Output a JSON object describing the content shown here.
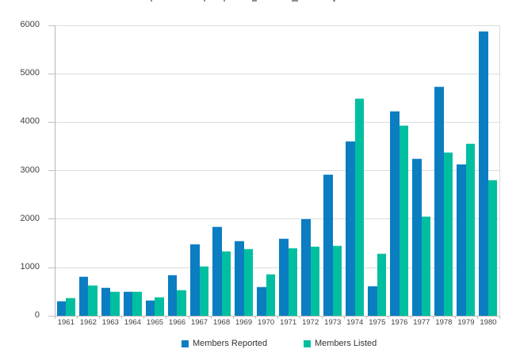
{
  "chart_data": {
    "type": "bar",
    "title_clipped": true,
    "categories": [
      "1961",
      "1962",
      "1963",
      "1964",
      "1965",
      "1966",
      "1967",
      "1968",
      "1969",
      "1970",
      "1971",
      "1972",
      "1973",
      "1974",
      "1975",
      "1976",
      "1977",
      "1978",
      "1979",
      "1980"
    ],
    "series": [
      {
        "name": "Members Reported",
        "color": "#0b7dc1",
        "cap_color": "#b8d9f0",
        "values": [
          300,
          810,
          590,
          500,
          330,
          840,
          1490,
          1850,
          1550,
          600,
          1600,
          2010,
          2920,
          3600,
          610,
          4230,
          3250,
          4740,
          3130,
          5880
        ]
      },
      {
        "name": "Members Listed",
        "color": "#00bfa0",
        "cap_color": "#b2ecdf",
        "values": [
          380,
          630,
          500,
          510,
          390,
          530,
          1030,
          1340,
          1380,
          860,
          1400,
          1430,
          1450,
          4490,
          1290,
          3930,
          2050,
          3370,
          3550,
          2810
        ]
      }
    ],
    "ylim": [
      0,
      6000
    ],
    "yticks": [
      0,
      1000,
      2000,
      3000,
      4000,
      5000,
      6000
    ],
    "grid": true,
    "legend_position": "bottom",
    "colors": {
      "grid": "#dcdcdc",
      "axis": "#b5b5b5",
      "tick": "#c0c0c0",
      "labels": "#404040"
    }
  }
}
